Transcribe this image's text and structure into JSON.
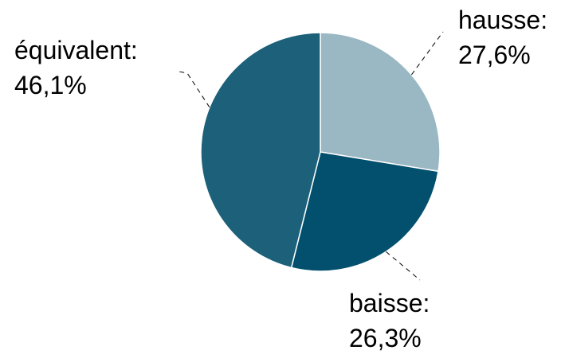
{
  "chart_data": {
    "type": "pie",
    "slices": [
      {
        "category": "hausse",
        "value": 27.6,
        "label_name": "hausse:",
        "label_value": "27,6%",
        "color": "#9ab8c4"
      },
      {
        "category": "baisse",
        "value": 26.3,
        "label_name": "baisse:",
        "label_value": "26,3%",
        "color": "#02506e"
      },
      {
        "category": "équivalent",
        "value": 46.1,
        "label_name": "équivalent:",
        "label_value": "46,1%",
        "color": "#1d6079"
      }
    ],
    "title": "",
    "legend": "none",
    "start_angle": "12 o'clock, clockwise"
  }
}
